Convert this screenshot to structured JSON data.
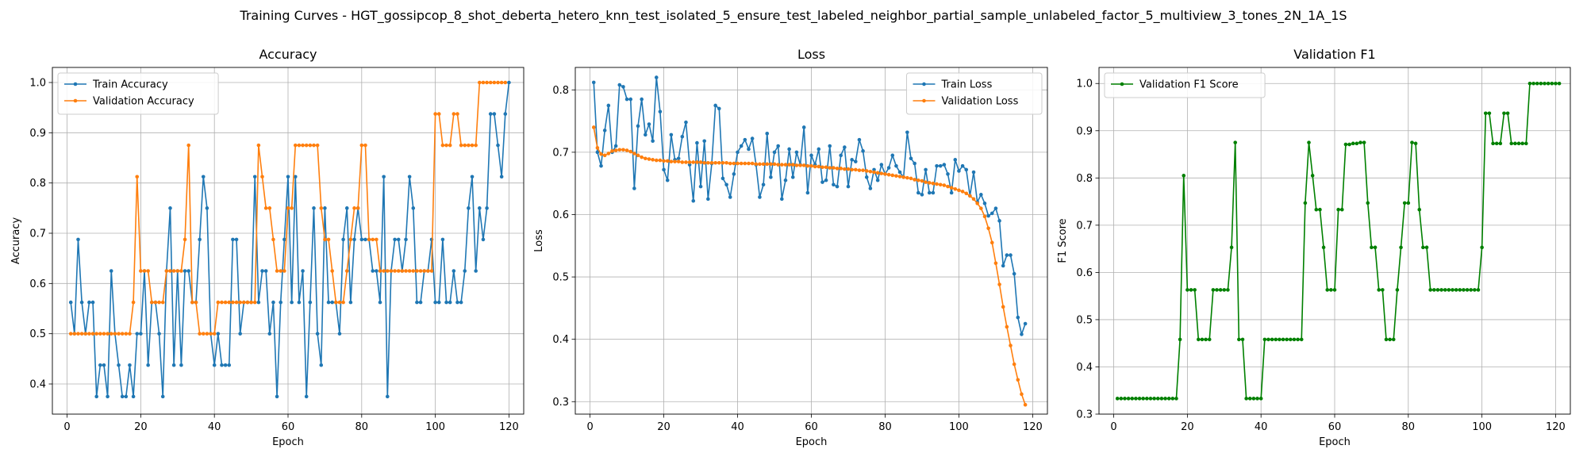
{
  "figure": {
    "title": "Training Curves - HGT_gossipcop_8_shot_deberta_hetero_knn_test_isolated_5_ensure_test_labeled_neighbor_partial_sample_unlabeled_factor_5_multiview_3_tones_2N_1A_1S"
  },
  "chart_data": [
    {
      "type": "line",
      "title": "Accuracy",
      "xlabel": "Epoch",
      "ylabel": "Accuracy",
      "xlim": [
        -4,
        124
      ],
      "ylim": [
        0.34,
        1.03
      ],
      "xticks": [
        0,
        20,
        40,
        60,
        80,
        100,
        120
      ],
      "yticks": [
        0.4,
        0.5,
        0.6,
        0.7,
        0.8,
        0.9,
        1.0
      ],
      "ytick_labels": [
        "0.4",
        "0.5",
        "0.6",
        "0.7",
        "0.8",
        "0.9",
        "1.0"
      ],
      "grid": true,
      "legend": "top-left",
      "x_start": 1,
      "series": [
        {
          "name": "Train Accuracy",
          "color": "#1f77b4",
          "values": [
            0.5625,
            0.5,
            0.6875,
            0.5625,
            0.5,
            0.5625,
            0.5625,
            0.375,
            0.4375,
            0.4375,
            0.375,
            0.625,
            0.5,
            0.4375,
            0.375,
            0.375,
            0.4375,
            0.375,
            0.5,
            0.5,
            0.625,
            0.4375,
            0.5625,
            0.5625,
            0.5,
            0.375,
            0.625,
            0.75,
            0.4375,
            0.625,
            0.4375,
            0.625,
            0.625,
            0.5625,
            0.5625,
            0.6875,
            0.8125,
            0.75,
            0.5,
            0.4375,
            0.5,
            0.4375,
            0.4375,
            0.4375,
            0.6875,
            0.6875,
            0.5,
            0.5625,
            0.5625,
            0.5625,
            0.8125,
            0.5625,
            0.625,
            0.625,
            0.5,
            0.5625,
            0.375,
            0.5625,
            0.6875,
            0.8125,
            0.5625,
            0.8125,
            0.5625,
            0.625,
            0.375,
            0.5625,
            0.75,
            0.5,
            0.4375,
            0.75,
            0.5625,
            0.5625,
            0.5625,
            0.5,
            0.6875,
            0.75,
            0.5625,
            0.6875,
            0.75,
            0.6875,
            0.6875,
            0.6875,
            0.625,
            0.625,
            0.5625,
            0.8125,
            0.375,
            0.625,
            0.6875,
            0.6875,
            0.625,
            0.6875,
            0.8125,
            0.75,
            0.5625,
            0.5625,
            0.625,
            0.625,
            0.6875,
            0.5625,
            0.5625,
            0.6875,
            0.5625,
            0.5625,
            0.625,
            0.5625,
            0.5625,
            0.625,
            0.75,
            0.8125,
            0.625,
            0.75,
            0.6875,
            0.75,
            0.9375,
            0.9375,
            0.875,
            0.8125,
            0.9375,
            1.0
          ]
        },
        {
          "name": "Validation Accuracy",
          "color": "#ff7f0e",
          "values": [
            0.5,
            0.5,
            0.5,
            0.5,
            0.5,
            0.5,
            0.5,
            0.5,
            0.5,
            0.5,
            0.5,
            0.5,
            0.5,
            0.5,
            0.5,
            0.5,
            0.5,
            0.5625,
            0.8125,
            0.625,
            0.625,
            0.625,
            0.5625,
            0.5625,
            0.5625,
            0.5625,
            0.625,
            0.625,
            0.625,
            0.625,
            0.625,
            0.6875,
            0.875,
            0.5625,
            0.5625,
            0.5,
            0.5,
            0.5,
            0.5,
            0.5,
            0.5625,
            0.5625,
            0.5625,
            0.5625,
            0.5625,
            0.5625,
            0.5625,
            0.5625,
            0.5625,
            0.5625,
            0.5625,
            0.875,
            0.8125,
            0.75,
            0.75,
            0.6875,
            0.625,
            0.625,
            0.625,
            0.75,
            0.75,
            0.875,
            0.875,
            0.875,
            0.875,
            0.875,
            0.875,
            0.875,
            0.75,
            0.6875,
            0.6875,
            0.625,
            0.5625,
            0.5625,
            0.5625,
            0.625,
            0.6875,
            0.75,
            0.75,
            0.875,
            0.875,
            0.6875,
            0.6875,
            0.6875,
            0.625,
            0.625,
            0.625,
            0.625,
            0.625,
            0.625,
            0.625,
            0.625,
            0.625,
            0.625,
            0.625,
            0.625,
            0.625,
            0.625,
            0.625,
            0.9375,
            0.9375,
            0.875,
            0.875,
            0.875,
            0.9375,
            0.9375,
            0.875,
            0.875,
            0.875,
            0.875,
            0.875,
            1.0,
            1.0,
            1.0,
            1.0,
            1.0,
            1.0,
            1.0,
            1.0
          ]
        }
      ]
    },
    {
      "type": "line",
      "title": "Loss",
      "xlabel": "Epoch",
      "ylabel": "Loss",
      "xlim": [
        -4,
        124
      ],
      "ylim": [
        0.28,
        0.836
      ],
      "xticks": [
        0,
        20,
        40,
        60,
        80,
        100,
        120
      ],
      "yticks": [
        0.3,
        0.4,
        0.5,
        0.6,
        0.7,
        0.8
      ],
      "ytick_labels": [
        "0.3",
        "0.4",
        "0.5",
        "0.6",
        "0.7",
        "0.8"
      ],
      "grid": true,
      "legend": "top-right",
      "x_start": 1,
      "series": [
        {
          "name": "Train Loss",
          "color": "#1f77b4",
          "values": [
            0.812,
            0.7,
            0.678,
            0.735,
            0.775,
            0.7,
            0.71,
            0.808,
            0.805,
            0.785,
            0.785,
            0.642,
            0.742,
            0.785,
            0.728,
            0.745,
            0.718,
            0.82,
            0.765,
            0.672,
            0.655,
            0.728,
            0.688,
            0.69,
            0.725,
            0.748,
            0.68,
            0.622,
            0.715,
            0.645,
            0.718,
            0.625,
            0.682,
            0.775,
            0.77,
            0.658,
            0.648,
            0.628,
            0.665,
            0.7,
            0.71,
            0.72,
            0.705,
            0.722,
            0.68,
            0.628,
            0.648,
            0.73,
            0.66,
            0.7,
            0.71,
            0.625,
            0.655,
            0.705,
            0.66,
            0.7,
            0.68,
            0.74,
            0.635,
            0.695,
            0.68,
            0.705,
            0.652,
            0.655,
            0.71,
            0.648,
            0.645,
            0.695,
            0.708,
            0.645,
            0.688,
            0.685,
            0.72,
            0.702,
            0.66,
            0.642,
            0.672,
            0.655,
            0.68,
            0.665,
            0.675,
            0.695,
            0.678,
            0.668,
            0.66,
            0.732,
            0.69,
            0.682,
            0.635,
            0.632,
            0.672,
            0.635,
            0.635,
            0.678,
            0.678,
            0.68,
            0.665,
            0.635,
            0.688,
            0.67,
            0.678,
            0.672,
            0.63,
            0.668,
            0.62,
            0.632,
            0.618,
            0.598,
            0.602,
            0.61,
            0.59,
            0.518,
            0.535,
            0.535,
            0.505,
            0.435,
            0.408,
            0.425
          ]
        },
        {
          "name": "Validation Loss",
          "color": "#ff7f0e",
          "values": [
            0.74,
            0.707,
            0.697,
            0.695,
            0.698,
            0.702,
            0.703,
            0.704,
            0.704,
            0.703,
            0.701,
            0.698,
            0.695,
            0.692,
            0.69,
            0.689,
            0.688,
            0.687,
            0.687,
            0.686,
            0.686,
            0.685,
            0.685,
            0.685,
            0.684,
            0.684,
            0.684,
            0.684,
            0.684,
            0.684,
            0.683,
            0.683,
            0.683,
            0.683,
            0.683,
            0.683,
            0.683,
            0.682,
            0.682,
            0.682,
            0.682,
            0.682,
            0.682,
            0.682,
            0.681,
            0.681,
            0.681,
            0.681,
            0.681,
            0.681,
            0.68,
            0.68,
            0.68,
            0.68,
            0.68,
            0.679,
            0.679,
            0.679,
            0.678,
            0.678,
            0.677,
            0.677,
            0.676,
            0.676,
            0.675,
            0.675,
            0.674,
            0.674,
            0.673,
            0.673,
            0.672,
            0.672,
            0.671,
            0.671,
            0.67,
            0.669,
            0.668,
            0.667,
            0.666,
            0.665,
            0.664,
            0.663,
            0.662,
            0.661,
            0.66,
            0.659,
            0.658,
            0.656,
            0.655,
            0.654,
            0.652,
            0.651,
            0.65,
            0.649,
            0.648,
            0.647,
            0.645,
            0.643,
            0.641,
            0.639,
            0.637,
            0.634,
            0.63,
            0.625,
            0.618,
            0.61,
            0.597,
            0.578,
            0.555,
            0.522,
            0.488,
            0.452,
            0.42,
            0.39,
            0.36,
            0.335,
            0.312,
            0.295
          ]
        }
      ]
    },
    {
      "type": "line",
      "title": "Validation F1",
      "xlabel": "Epoch",
      "ylabel": "F1 Score",
      "xlim": [
        -4,
        124
      ],
      "ylim": [
        0.3,
        1.034
      ],
      "xticks": [
        0,
        20,
        40,
        60,
        80,
        100,
        120
      ],
      "yticks": [
        0.3,
        0.4,
        0.5,
        0.6,
        0.7,
        0.8,
        0.9,
        1.0
      ],
      "ytick_labels": [
        "0.3",
        "0.4",
        "0.5",
        "0.6",
        "0.7",
        "0.8",
        "0.9",
        "1.0"
      ],
      "grid": true,
      "legend": "top-left",
      "x_start": 1,
      "series": [
        {
          "name": "Validation F1 Score",
          "color": "#008000",
          "values": [
            0.333,
            0.333,
            0.333,
            0.333,
            0.333,
            0.333,
            0.333,
            0.333,
            0.333,
            0.333,
            0.333,
            0.333,
            0.333,
            0.333,
            0.333,
            0.333,
            0.333,
            0.458,
            0.805,
            0.563,
            0.563,
            0.563,
            0.458,
            0.458,
            0.458,
            0.458,
            0.563,
            0.563,
            0.563,
            0.563,
            0.563,
            0.653,
            0.875,
            0.458,
            0.458,
            0.333,
            0.333,
            0.333,
            0.333,
            0.333,
            0.458,
            0.458,
            0.458,
            0.458,
            0.458,
            0.458,
            0.458,
            0.458,
            0.458,
            0.458,
            0.458,
            0.747,
            0.875,
            0.805,
            0.733,
            0.733,
            0.653,
            0.563,
            0.563,
            0.563,
            0.733,
            0.733,
            0.871,
            0.871,
            0.873,
            0.873,
            0.875,
            0.875,
            0.747,
            0.653,
            0.653,
            0.563,
            0.563,
            0.458,
            0.458,
            0.458,
            0.563,
            0.653,
            0.747,
            0.747,
            0.875,
            0.873,
            0.733,
            0.653,
            0.653,
            0.563,
            0.563,
            0.563,
            0.563,
            0.563,
            0.563,
            0.563,
            0.563,
            0.563,
            0.563,
            0.563,
            0.563,
            0.563,
            0.563,
            0.653,
            0.937,
            0.937,
            0.873,
            0.873,
            0.873,
            0.937,
            0.937,
            0.873,
            0.873,
            0.873,
            0.873,
            0.873,
            1.0,
            1.0,
            1.0,
            1.0,
            1.0,
            1.0,
            1.0,
            1.0,
            1.0
          ]
        }
      ]
    }
  ]
}
